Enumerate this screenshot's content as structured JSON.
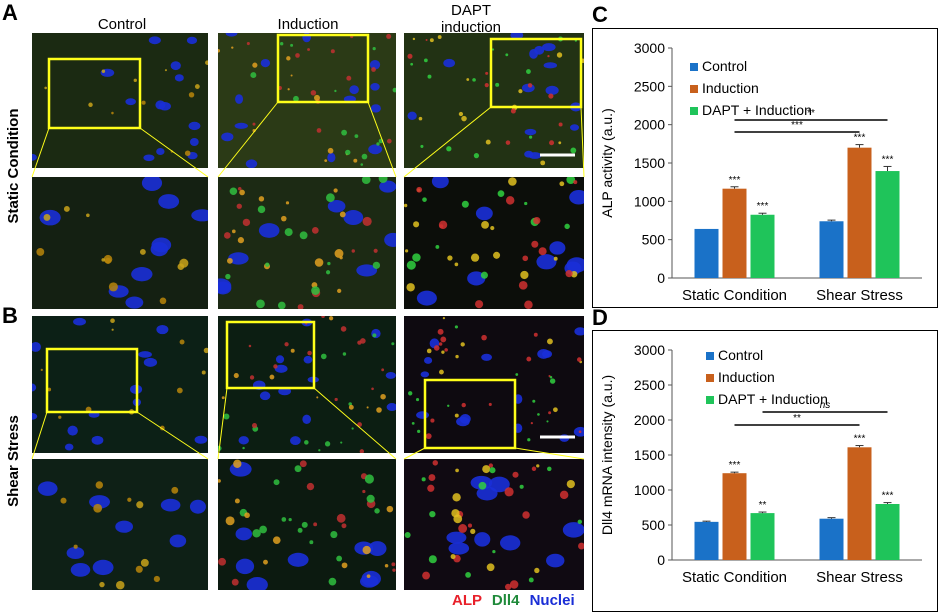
{
  "panels": {
    "A": "A",
    "B": "B",
    "C": "C",
    "D": "D"
  },
  "columns": [
    "Control",
    "Induction",
    "DAPT induction"
  ],
  "rows": [
    "Static Condition",
    "Shear Stress"
  ],
  "stain_legend": [
    {
      "label": "ALP",
      "color": "#e8202a"
    },
    {
      "label": "Dll4",
      "color": "#1f8a3a"
    },
    {
      "label": "Nuclei",
      "color": "#1a2ed6"
    }
  ],
  "colors": {
    "control": "#1a72c8",
    "induction": "#c8601c",
    "dapt": "#1fc45a",
    "roi": "#ffff1a"
  },
  "chart_data": [
    {
      "type": "bar",
      "panel": "C",
      "categories": [
        "Static Condition",
        "Shear Stress"
      ],
      "ylabel": "ALP activity (a.u.)",
      "ylim": [
        0,
        3000
      ],
      "yticks": [
        "0",
        "500",
        "1000",
        "1500",
        "2000",
        "2500",
        "3000"
      ],
      "series": [
        {
          "name": "Control",
          "values": [
            640,
            740
          ],
          "errors": [
            0,
            15
          ],
          "sig": [
            "",
            ""
          ]
        },
        {
          "name": "Induction",
          "values": [
            1165,
            1700
          ],
          "errors": [
            25,
            40
          ],
          "sig": [
            "***",
            "***"
          ]
        },
        {
          "name": "DAPT + Induction",
          "values": [
            825,
            1395
          ],
          "errors": [
            20,
            60
          ],
          "sig": [
            "***",
            "***"
          ]
        }
      ],
      "comparisons": [
        {
          "label": "**",
          "from": "Static Condition / Induction",
          "to": "Shear Stress / DAPT + Induction"
        },
        {
          "label": "***",
          "from": "Static Condition / Induction",
          "to": "Shear Stress / Induction"
        }
      ],
      "legend": "top-left",
      "grid": false
    },
    {
      "type": "bar",
      "panel": "D",
      "categories": [
        "Static Condition",
        "Shear Stress"
      ],
      "ylabel": "Dll4 mRNA intensity (a.u.)",
      "ylim": [
        0,
        3000
      ],
      "yticks": [
        "0",
        "500",
        "1000",
        "1500",
        "2000",
        "2500",
        "3000"
      ],
      "series": [
        {
          "name": "Control",
          "values": [
            545,
            590
          ],
          "errors": [
            10,
            15
          ],
          "sig": [
            "",
            ""
          ]
        },
        {
          "name": "Induction",
          "values": [
            1240,
            1610
          ],
          "errors": [
            15,
            25
          ],
          "sig": [
            "***",
            "***"
          ]
        },
        {
          "name": "DAPT + Induction",
          "values": [
            670,
            800
          ],
          "errors": [
            15,
            20
          ],
          "sig": [
            "**",
            "***"
          ]
        }
      ],
      "comparisons": [
        {
          "label": "ns",
          "from": "Static Condition / DAPT + Induction",
          "to": "Shear Stress / DAPT + Induction"
        },
        {
          "label": "**",
          "from": "Static Condition / Induction",
          "to": "Shear Stress / Induction"
        }
      ],
      "legend": "top-left",
      "grid": false
    }
  ]
}
